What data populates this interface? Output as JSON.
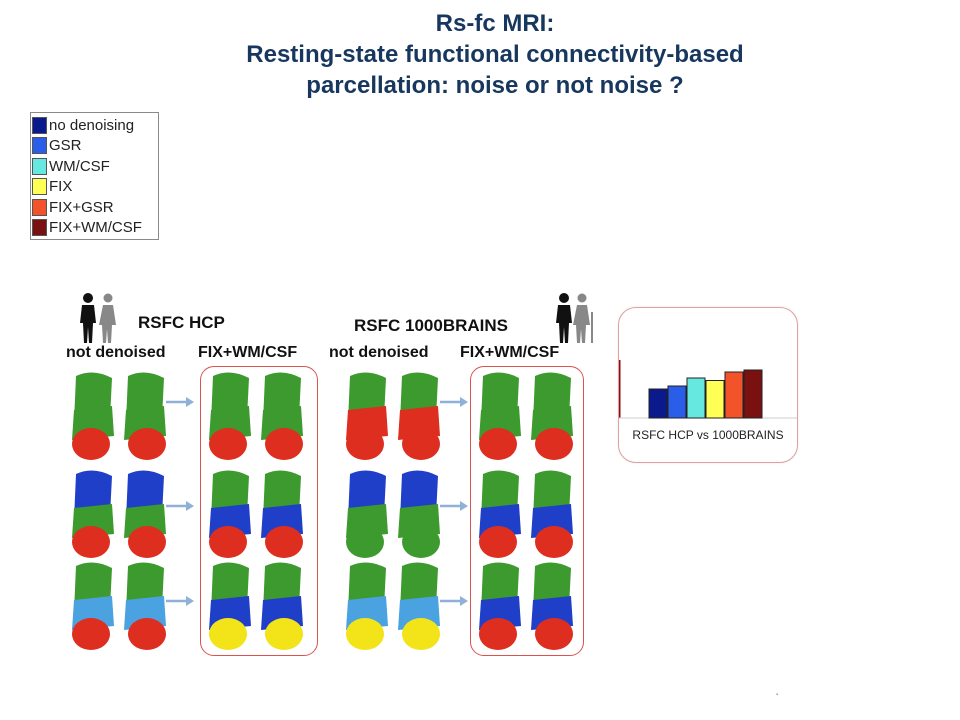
{
  "title": {
    "line1": "Rs-fc MRI:",
    "line2": "Resting-state functional connectivity-based",
    "line3": "parcellation: noise or not noise ?"
  },
  "legend": [
    {
      "label": "no denoising",
      "color": "#0a1a8c"
    },
    {
      "label": "GSR",
      "color": "#2a5ee8"
    },
    {
      "label": "WM/CSF",
      "color": "#66e8e0"
    },
    {
      "label": "FIX",
      "color": "#ffff55"
    },
    {
      "label": "FIX+GSR",
      "color": "#f2532b"
    },
    {
      "label": "FIX+WM/CSF",
      "color": "#7a1010"
    }
  ],
  "figure": {
    "hcp_title": "RSFC HCP",
    "brains_title": "RSFC 1000BRAINS",
    "col1": "not denoised",
    "col2": "FIX+WM/CSF",
    "col3": "not denoised",
    "col4": "FIX+WM/CSF"
  },
  "inset": {
    "label": "RSFC HCP vs 1000BRAINS",
    "bars": [
      {
        "value": 0.58,
        "color": "#0a1a8c"
      },
      {
        "value": 0.64,
        "color": "#2a5ee8"
      },
      {
        "value": 0.8,
        "color": "#66e8e0"
      },
      {
        "value": 0.75,
        "color": "#ffff55"
      },
      {
        "value": 0.92,
        "color": "#f2532b"
      },
      {
        "value": 0.96,
        "color": "#7a1010"
      }
    ]
  },
  "parcel_colors": {
    "green": "#3d9a2e",
    "red": "#dd2e20",
    "blue": "#1f3fc8",
    "light_blue": "#4aa3e0",
    "yellow": "#f2e418"
  }
}
